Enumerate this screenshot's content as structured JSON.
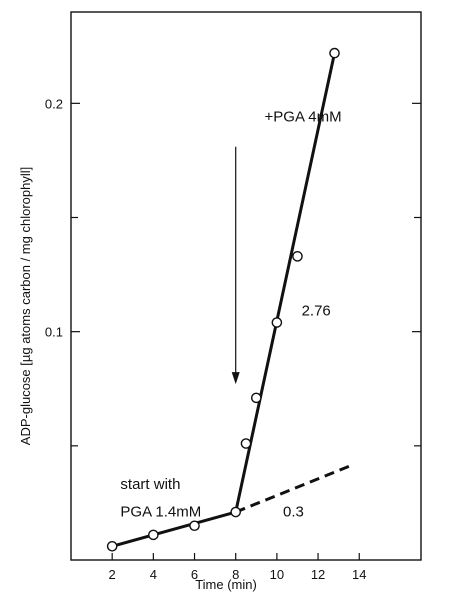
{
  "chart_data": {
    "type": "line",
    "xlabel": "Time (min)",
    "ylabel": "ADP-glucose [µg atoms carbon / mg chlorophyll]",
    "xlim": [
      0,
      17
    ],
    "ylim": [
      0,
      0.24
    ],
    "x_ticks": [
      2,
      4,
      6,
      8,
      10,
      12,
      14
    ],
    "y_ticks": [
      0.1,
      0.2
    ],
    "y_tick_labels": [
      "0.1",
      "0.2"
    ],
    "grid": false,
    "points": [
      {
        "x": 2,
        "y": 0.006
      },
      {
        "x": 4,
        "y": 0.011
      },
      {
        "x": 6,
        "y": 0.015
      },
      {
        "x": 8,
        "y": 0.021
      },
      {
        "x": 8.5,
        "y": 0.051
      },
      {
        "x": 9,
        "y": 0.071
      },
      {
        "x": 10,
        "y": 0.104
      },
      {
        "x": 11,
        "y": 0.133
      },
      {
        "x": 12.8,
        "y": 0.222
      }
    ],
    "series": [
      {
        "style": "solid",
        "x": [
          2,
          8
        ],
        "y": [
          0.006,
          0.021
        ]
      },
      {
        "style": "solid",
        "x": [
          8,
          12.8
        ],
        "y": [
          0.021,
          0.222
        ]
      },
      {
        "style": "dashed",
        "x": [
          8,
          13.5
        ],
        "y": [
          0.021,
          0.041
        ]
      }
    ],
    "annotations": [
      {
        "text": "+PGA 4mM",
        "x": 9.4,
        "y": 0.192
      },
      {
        "text": "2.76",
        "x": 11.2,
        "y": 0.107
      },
      {
        "text": "0.3",
        "x": 10.3,
        "y": 0.019
      },
      {
        "text": "start with",
        "x": 2.4,
        "y": 0.031
      },
      {
        "text": "PGA 1.4mM",
        "x": 2.4,
        "y": 0.019
      }
    ],
    "arrow": {
      "x": 8,
      "y_from": 0.181,
      "y_to": 0.077
    }
  }
}
